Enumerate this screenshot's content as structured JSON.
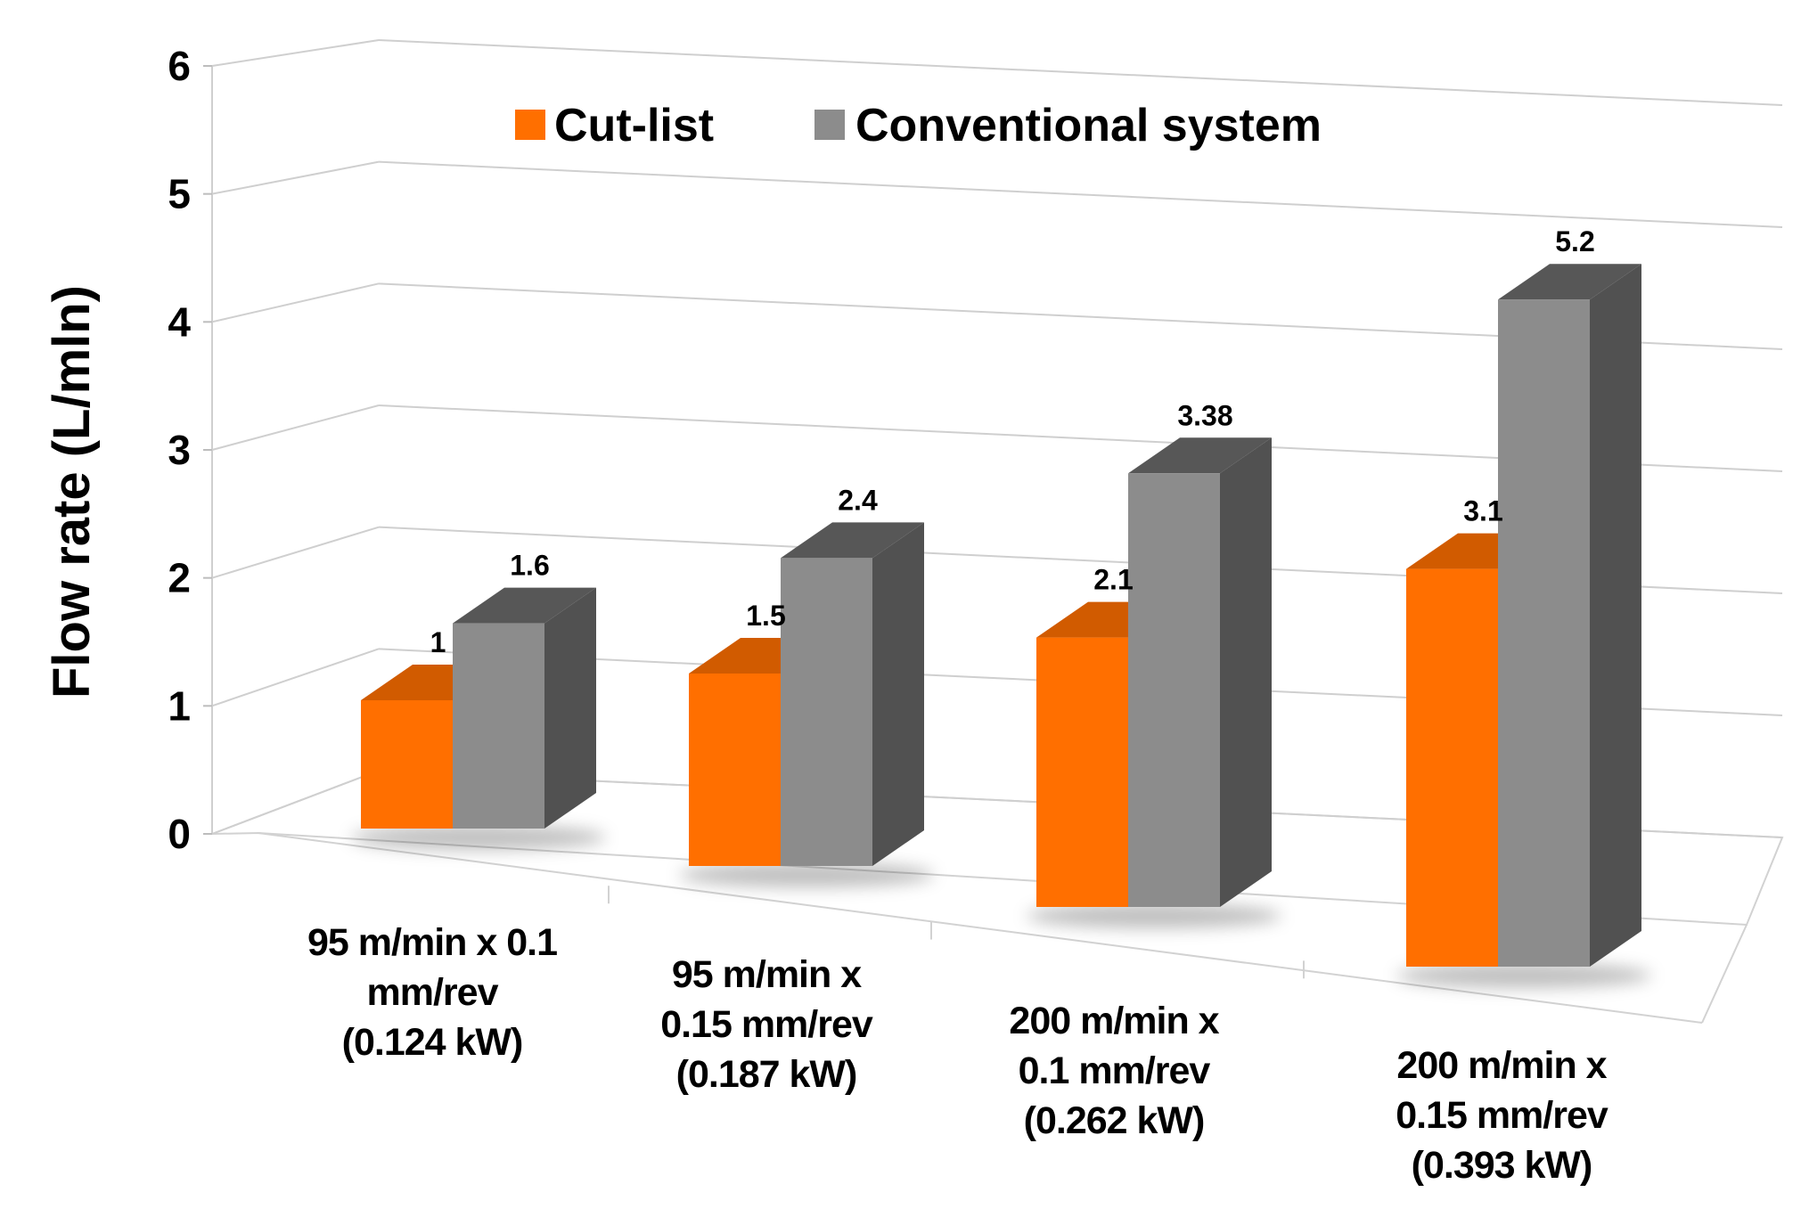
{
  "chart_data": {
    "type": "bar",
    "title": "",
    "xlabel": "",
    "ylabel": "Flow rate (L/mln)",
    "ylim": [
      0,
      6
    ],
    "yticks": [
      0,
      1,
      2,
      3,
      4,
      5,
      6
    ],
    "grid": true,
    "legend_position": "top-center",
    "categories": [
      [
        "95 m/min x 0.1",
        "mm/rev",
        "(0.124 kW)"
      ],
      [
        "95 m/min x",
        "0.15 mm/rev",
        "(0.187 kW)"
      ],
      [
        "200 m/min x",
        "0.1 mm/rev",
        "(0.262 kW)"
      ],
      [
        "200 m/min x",
        "0.15 mm/rev",
        "(0.393 kW)"
      ]
    ],
    "series": [
      {
        "name": "Cut-list",
        "values": [
          1,
          1.5,
          2.1,
          3.1
        ],
        "labels": [
          "1",
          "1.5",
          "2.1",
          "3.1"
        ],
        "color": "#ff6f00"
      },
      {
        "name": "Conventional system",
        "values": [
          1.6,
          2.4,
          3.38,
          5.2
        ],
        "labels": [
          "1.6",
          "2.4",
          "3.38",
          "5.2"
        ],
        "color": "#8c8c8c"
      }
    ]
  }
}
